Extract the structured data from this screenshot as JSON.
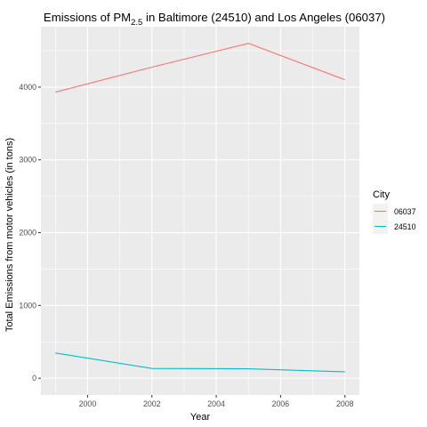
{
  "chart_data": {
    "type": "line",
    "title": {
      "prefix": "Emissions of PM",
      "subscript": "2.5",
      "suffix": " in Baltimore (24510) and Los Angeles (06037)"
    },
    "xlabel": "Year",
    "ylabel": "Total Emissions from motor vehicles (in tons)",
    "x": [
      1999,
      2002,
      2005,
      2008
    ],
    "series": [
      {
        "name": "06037",
        "color": "#F8766D",
        "values": [
          3931,
          4274,
          4601,
          4101
        ]
      },
      {
        "name": "24510",
        "color": "#00BFC4",
        "values": [
          347,
          134,
          130,
          88
        ]
      }
    ],
    "xlim": [
      1998.55,
      2008.45
    ],
    "ylim": [
      -230,
      4830
    ],
    "x_ticks": [
      2000,
      2002,
      2004,
      2006,
      2008
    ],
    "x_tick_labels": [
      "2000",
      "2002",
      "2004",
      "2006",
      "2008"
    ],
    "y_ticks": [
      0,
      1000,
      2000,
      3000,
      4000
    ],
    "y_tick_labels": [
      "0",
      "1000",
      "2000",
      "3000",
      "4000"
    ],
    "grid": true,
    "legend": {
      "title": "City",
      "placement": "right"
    },
    "panel_background": "#EBEBEB",
    "grid_color": "#FFFFFF"
  }
}
